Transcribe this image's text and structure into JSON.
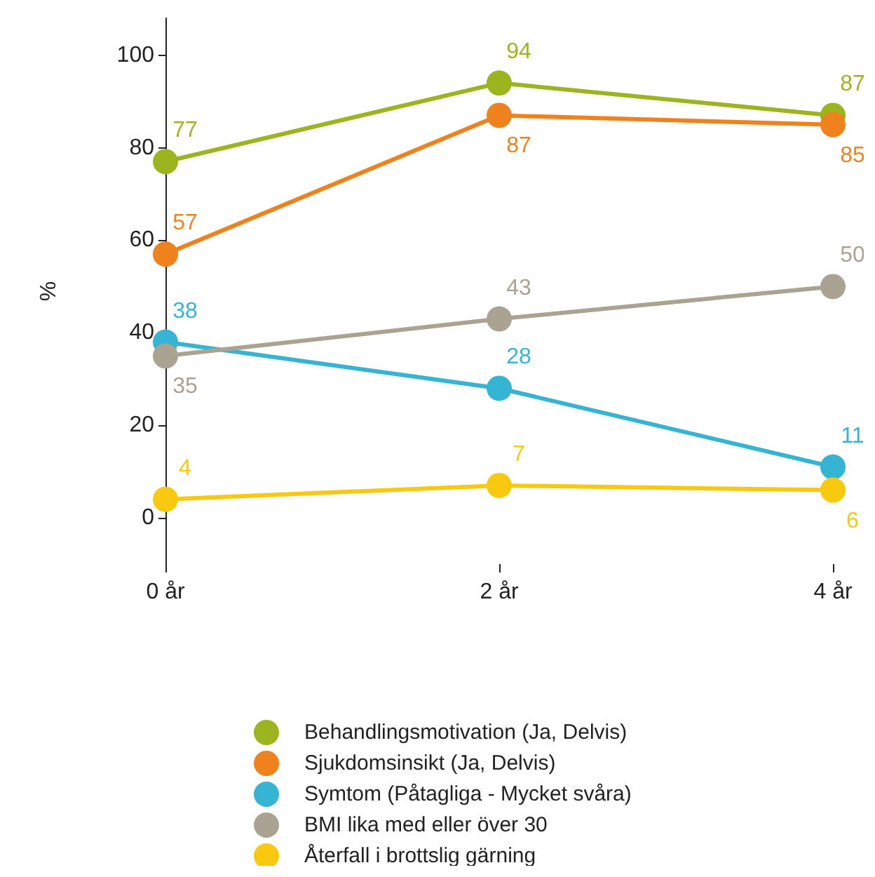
{
  "chart_data": {
    "type": "line",
    "ylabel": "%",
    "categories": [
      "0 år",
      "2 år",
      "4 år"
    ],
    "series": [
      {
        "name": "Behandlingsmotivation (Ja, Delvis)",
        "color": "#9cb51e",
        "values": [
          77,
          94,
          87
        ]
      },
      {
        "name": "Sjukdomsinsikt (Ja, Delvis)",
        "color": "#ef821c",
        "values": [
          57,
          87,
          85
        ]
      },
      {
        "name": "Symtom (Påtagliga - Mycket svåra)",
        "color": "#35b4d3",
        "values": [
          38,
          28,
          11
        ]
      },
      {
        "name": "BMI lika med eller över 30",
        "color": "#aaa391",
        "values": [
          35,
          43,
          50
        ]
      },
      {
        "name": "Återfall i brottslig gärning",
        "color": "#f8c90f",
        "values": [
          4,
          7,
          6
        ]
      }
    ],
    "ylim": [
      -10,
      108
    ],
    "yticks": [
      0,
      20,
      40,
      60,
      80,
      100
    ],
    "grid": false,
    "legend": "bottom",
    "marker": "circle",
    "line_style": "solid",
    "data_labels": true
  }
}
